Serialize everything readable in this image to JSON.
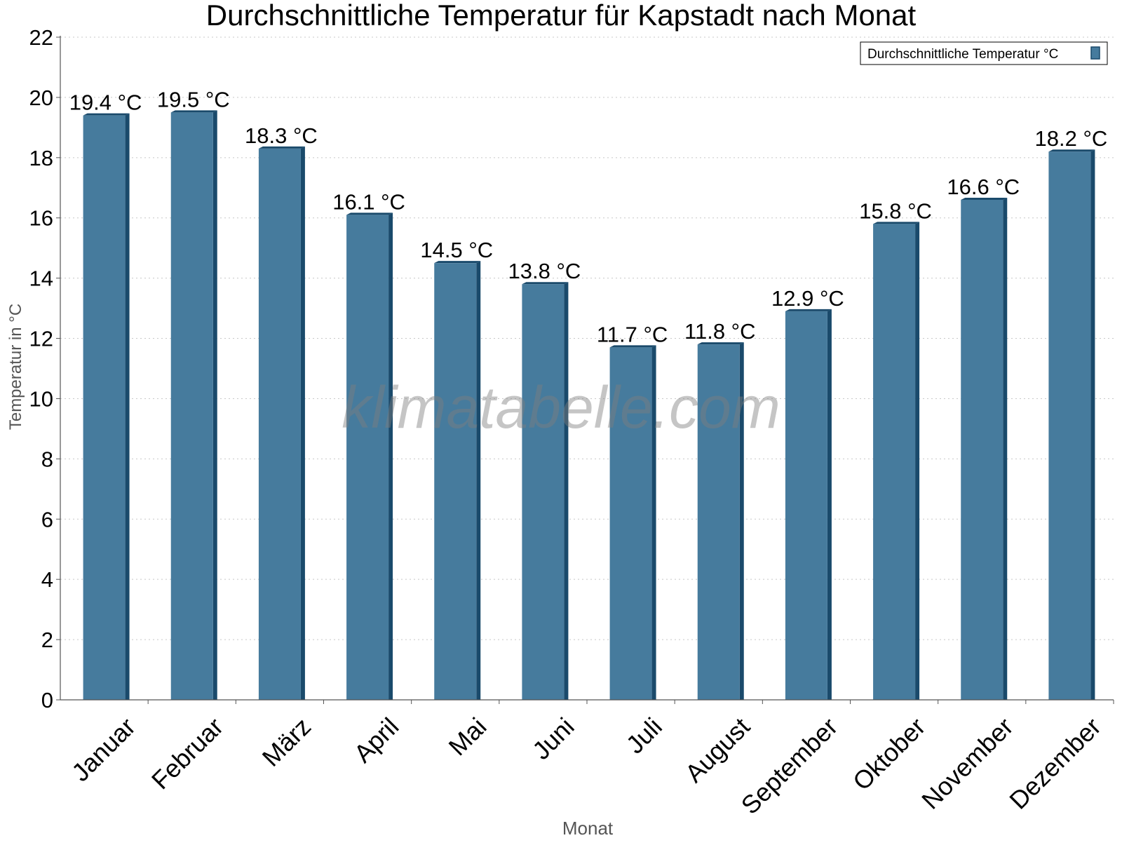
{
  "chart_data": {
    "type": "bar",
    "title": "Durchschnittliche Temperatur für Kapstadt nach Monat",
    "xlabel": "Monat",
    "ylabel": "Temperatur in °C",
    "categories": [
      "Januar",
      "Februar",
      "März",
      "April",
      "Mai",
      "Juni",
      "Juli",
      "August",
      "September",
      "Oktober",
      "November",
      "Dezember"
    ],
    "series": [
      {
        "name": "Durchschnittliche Temperatur °C",
        "values": [
          19.4,
          19.5,
          18.3,
          16.1,
          14.5,
          13.8,
          11.7,
          11.8,
          12.9,
          15.8,
          16.6,
          18.2
        ],
        "labels": [
          "19.4 °C",
          "19.5 °C",
          "18.3 °C",
          "16.1 °C",
          "14.5 °C",
          "13.8 °C",
          "11.7 °C",
          "11.8 °C",
          "12.9 °C",
          "15.8 °C",
          "16.6 °C",
          "18.2 °C"
        ]
      }
    ],
    "ylim": [
      0,
      22
    ],
    "yticks": [
      0,
      2,
      4,
      6,
      8,
      10,
      12,
      14,
      16,
      18,
      20,
      22
    ],
    "grid": true,
    "legend_position": "top-right",
    "colors": {
      "bar": "#467b9d",
      "bar_dark": "#1a4a6b",
      "grid": "#c8c8c8",
      "axis": "#555555"
    }
  },
  "watermark": "klimatabelle.com"
}
